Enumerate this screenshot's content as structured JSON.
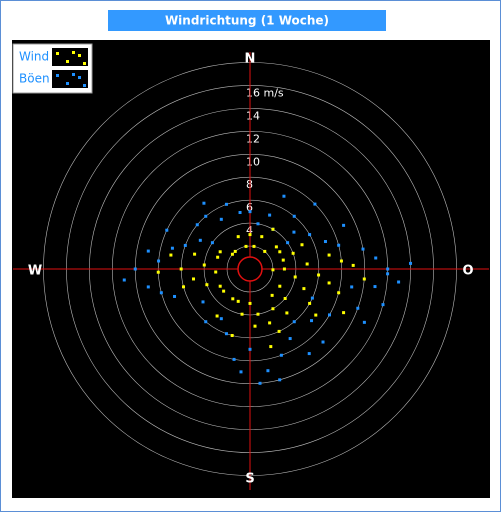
{
  "chart_data": {
    "type": "polar-scatter",
    "title": "Windrichtung (1 Woche)",
    "directions": [
      "N",
      "O",
      "S",
      "W"
    ],
    "rlim": [
      0,
      19
    ],
    "rticks": [
      {
        "value": 2,
        "label": null
      },
      4,
      6,
      8,
      10,
      12,
      14,
      {
        "value": 16,
        "label": "16 m/s"
      },
      {
        "value": 18,
        "label": null
      }
    ],
    "series": [
      {
        "name": "Böen",
        "color": "#1e90ff",
        "direction": [
          90,
          85,
          95,
          80,
          100,
          105,
          75,
          70,
          110,
          120,
          130,
          140,
          150,
          160,
          170,
          180,
          190,
          200,
          210,
          220,
          235,
          250,
          260,
          270,
          275,
          280,
          285,
          290,
          300,
          310,
          320,
          330,
          340,
          350,
          0,
          10,
          20,
          30,
          40,
          50,
          60,
          65,
          88,
          92,
          98,
          115,
          145,
          165,
          175,
          185,
          255,
          265,
          295,
          305,
          325,
          25,
          45,
          55,
          115,
          135
        ],
        "speed": [
          12,
          11,
          13,
          10,
          9,
          12,
          8,
          7,
          10,
          8,
          7,
          6,
          7,
          8,
          9,
          7,
          8,
          6,
          5,
          6,
          5,
          7,
          9,
          10,
          8,
          9,
          7,
          6,
          5,
          6,
          6,
          5,
          6,
          5,
          5,
          4,
          5,
          4,
          6,
          5,
          6,
          9,
          14,
          12,
          11,
          11,
          9,
          10,
          10,
          9,
          8,
          11,
          8,
          4,
          7,
          7,
          8,
          4,
          6,
          9
        ]
      },
      {
        "name": "Wind",
        "color": "#ffff00",
        "direction": [
          90,
          85,
          95,
          80,
          100,
          75,
          105,
          88,
          92,
          70,
          110,
          120,
          130,
          140,
          150,
          160,
          170,
          180,
          190,
          200,
          210,
          230,
          250,
          260,
          270,
          275,
          280,
          265,
          290,
          300,
          320,
          340,
          0,
          20,
          40,
          60,
          95,
          85,
          120,
          140,
          155,
          165,
          175,
          195,
          215,
          240,
          255,
          268,
          285,
          310,
          350,
          10,
          30,
          50,
          65,
          100,
          115,
          125
        ],
        "speed": [
          3,
          5,
          6,
          7,
          4,
          3,
          8,
          9,
          2,
          4,
          5,
          3,
          4,
          3,
          4,
          5,
          4,
          3,
          4,
          3,
          3,
          3,
          4,
          5,
          6,
          4,
          7,
          3,
          3,
          3,
          2,
          3,
          3,
          3,
          2,
          3,
          10,
          8,
          6,
          5,
          6,
          7,
          5,
          6,
          5,
          3,
          6,
          8,
          5,
          2,
          2,
          2,
          4,
          3,
          5,
          7,
          9,
          7
        ]
      }
    ]
  }
}
